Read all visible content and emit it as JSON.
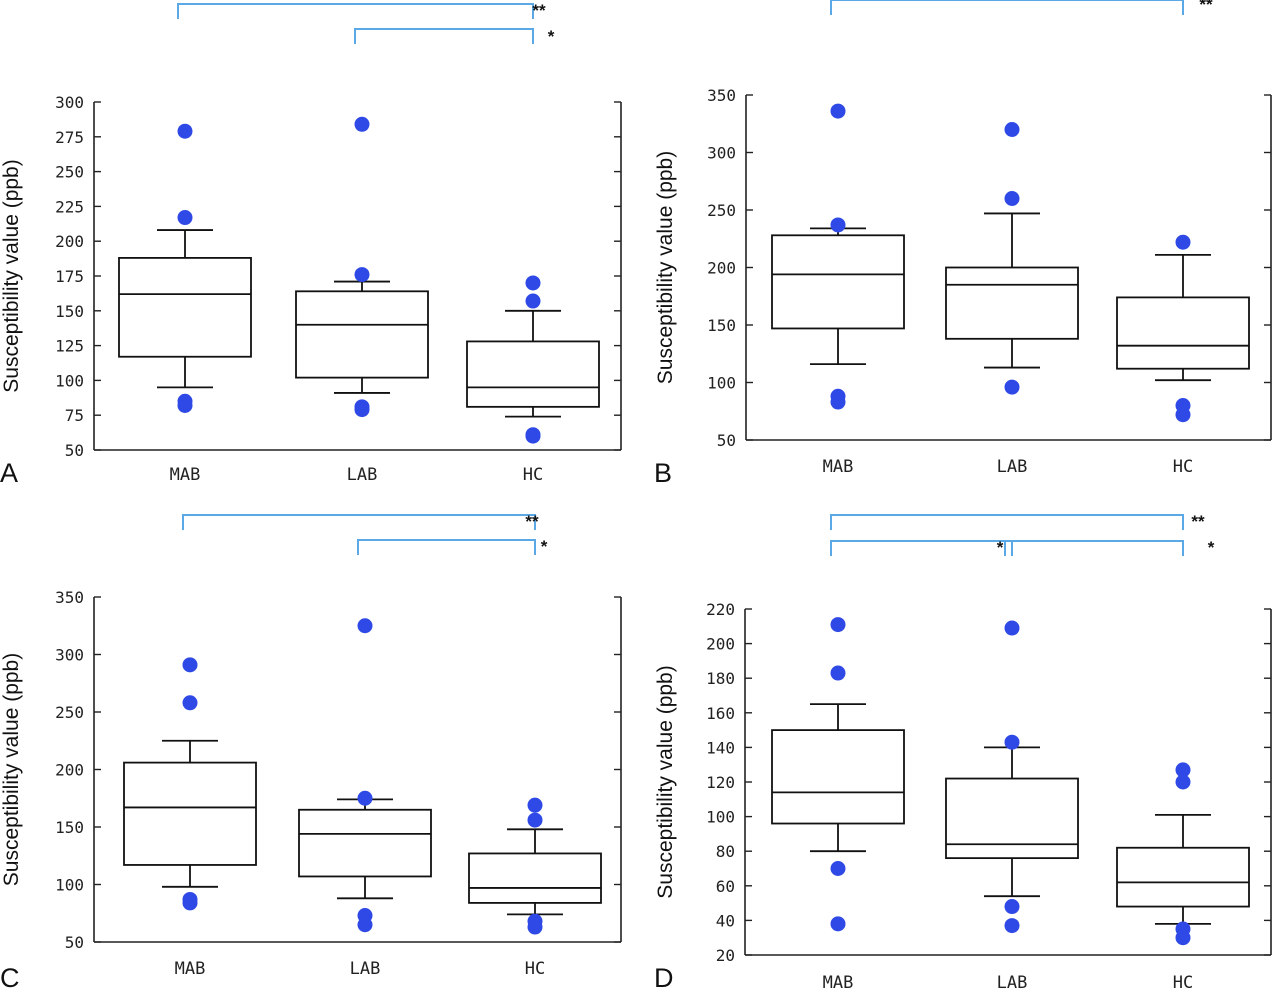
{
  "chart_data": [
    {
      "panel": "A",
      "type": "box",
      "ylabel": "Susceptibility value (ppb)",
      "ylim": [
        50,
        300
      ],
      "yticks": [
        50,
        75,
        100,
        125,
        150,
        175,
        200,
        225,
        250,
        275,
        300
      ],
      "categories": [
        "MAB",
        "LAB",
        "HC"
      ],
      "boxes": [
        {
          "q1": 117,
          "median": 162,
          "q3": 188,
          "whisker_low": 95,
          "whisker_high": 208,
          "outliers": [
            279,
            217,
            85,
            82
          ]
        },
        {
          "q1": 102,
          "median": 140,
          "q3": 164,
          "whisker_low": 91,
          "whisker_high": 171,
          "outliers": [
            284,
            176,
            81,
            79
          ]
        },
        {
          "q1": 81,
          "median": 95,
          "q3": 128,
          "whisker_low": 74,
          "whisker_high": 150,
          "outliers": [
            170,
            157,
            61,
            60
          ]
        }
      ],
      "significance": [
        {
          "from": 0,
          "to": 2,
          "label": "**"
        },
        {
          "from": 1,
          "to": 2,
          "label": "*"
        }
      ]
    },
    {
      "panel": "B",
      "type": "box",
      "ylabel": "Susceptibility value (ppb)",
      "ylim": [
        50,
        350
      ],
      "yticks": [
        50,
        100,
        150,
        200,
        250,
        300,
        350
      ],
      "categories": [
        "MAB",
        "LAB",
        "HC"
      ],
      "boxes": [
        {
          "q1": 147,
          "median": 194,
          "q3": 228,
          "whisker_low": 116,
          "whisker_high": 234,
          "outliers": [
            336,
            237,
            88,
            83
          ]
        },
        {
          "q1": 138,
          "median": 185,
          "q3": 200,
          "whisker_low": 113,
          "whisker_high": 247,
          "outliers": [
            320,
            260,
            96
          ]
        },
        {
          "q1": 112,
          "median": 132,
          "q3": 174,
          "whisker_low": 102,
          "whisker_high": 211,
          "outliers": [
            222,
            80,
            72
          ]
        }
      ],
      "significance": [
        {
          "from": 0,
          "to": 2,
          "label": "**"
        }
      ]
    },
    {
      "panel": "C",
      "type": "box",
      "ylabel": "Susceptibility value (ppb)",
      "ylim": [
        50,
        350
      ],
      "yticks": [
        50,
        100,
        150,
        200,
        250,
        300,
        350
      ],
      "categories": [
        "MAB",
        "LAB",
        "HC"
      ],
      "boxes": [
        {
          "q1": 117,
          "median": 167,
          "q3": 206,
          "whisker_low": 98,
          "whisker_high": 225,
          "outliers": [
            291,
            258,
            87,
            84
          ]
        },
        {
          "q1": 107,
          "median": 144,
          "q3": 165,
          "whisker_low": 88,
          "whisker_high": 174,
          "outliers": [
            325,
            175,
            73,
            65
          ]
        },
        {
          "q1": 84,
          "median": 97,
          "q3": 127,
          "whisker_low": 74,
          "whisker_high": 148,
          "outliers": [
            169,
            156,
            68,
            63
          ]
        }
      ],
      "significance": [
        {
          "from": 0,
          "to": 2,
          "label": "**"
        },
        {
          "from": 1,
          "to": 2,
          "label": "*"
        }
      ]
    },
    {
      "panel": "D",
      "type": "box",
      "ylabel": "Susceptibility value (ppb)",
      "ylim": [
        20,
        220
      ],
      "yticks": [
        20,
        40,
        60,
        80,
        100,
        120,
        140,
        160,
        180,
        200,
        220
      ],
      "categories": [
        "MAB",
        "LAB",
        "HC"
      ],
      "boxes": [
        {
          "q1": 96,
          "median": 114,
          "q3": 150,
          "whisker_low": 80,
          "whisker_high": 165,
          "outliers": [
            211,
            183,
            70,
            38
          ]
        },
        {
          "q1": 76,
          "median": 84,
          "q3": 122,
          "whisker_low": 54,
          "whisker_high": 140,
          "outliers": [
            209,
            143,
            48,
            37
          ]
        },
        {
          "q1": 48,
          "median": 62,
          "q3": 82,
          "whisker_low": 38,
          "whisker_high": 101,
          "outliers": [
            127,
            120,
            35,
            30
          ]
        }
      ],
      "significance": [
        {
          "from": 0,
          "to": 2,
          "label": "**"
        },
        {
          "from": 0,
          "to": 1,
          "label": "*"
        },
        {
          "from": 1,
          "to": 2,
          "label": "*"
        }
      ]
    }
  ],
  "colors": {
    "outlier": "#2f49e6",
    "bracket": "#5aa9e6",
    "axis": "#222222",
    "box": "#111111"
  }
}
